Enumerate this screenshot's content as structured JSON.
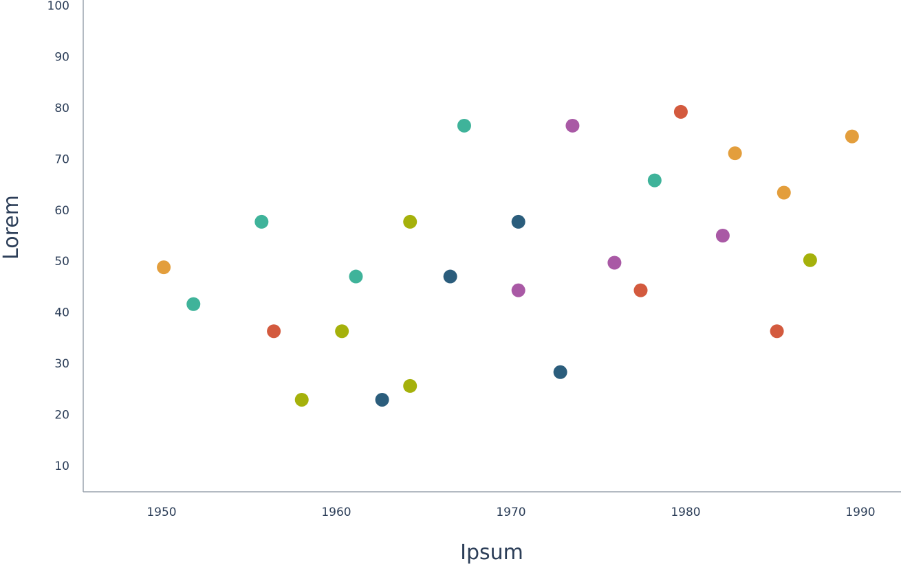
{
  "chart_data": {
    "type": "scatter",
    "xlabel": "Ipsum",
    "ylabel": "Lorem",
    "xlim": [
      1945.6,
      1991.6
    ],
    "ylim": [
      5,
      100
    ],
    "x_ticks": [
      1950,
      1960,
      1970,
      1980,
      1990
    ],
    "y_ticks": [
      10,
      20,
      30,
      40,
      50,
      60,
      70,
      80,
      90,
      100
    ],
    "grid": false,
    "legend": "none",
    "points": [
      {
        "x": 1950.2,
        "y": 48.8,
        "color": "#e39e3c"
      },
      {
        "x": 1951.9,
        "y": 41.6,
        "color": "#3fb39a"
      },
      {
        "x": 1955.8,
        "y": 57.7,
        "color": "#3fb39a"
      },
      {
        "x": 1956.5,
        "y": 36.3,
        "color": "#d35a3e"
      },
      {
        "x": 1958.1,
        "y": 22.9,
        "color": "#a5b10b"
      },
      {
        "x": 1960.4,
        "y": 36.3,
        "color": "#a5b10b"
      },
      {
        "x": 1961.2,
        "y": 47.0,
        "color": "#3fb39a"
      },
      {
        "x": 1962.7,
        "y": 22.9,
        "color": "#2b5d7c"
      },
      {
        "x": 1964.3,
        "y": 25.6,
        "color": "#a5b10b"
      },
      {
        "x": 1964.3,
        "y": 57.7,
        "color": "#a5b10b"
      },
      {
        "x": 1966.6,
        "y": 47.0,
        "color": "#2b5d7c"
      },
      {
        "x": 1967.4,
        "y": 76.5,
        "color": "#3fb39a"
      },
      {
        "x": 1970.5,
        "y": 44.3,
        "color": "#a959a5"
      },
      {
        "x": 1970.5,
        "y": 57.7,
        "color": "#2b5d7c"
      },
      {
        "x": 1972.9,
        "y": 28.3,
        "color": "#2b5d7c"
      },
      {
        "x": 1973.6,
        "y": 76.5,
        "color": "#a959a5"
      },
      {
        "x": 1976.0,
        "y": 49.7,
        "color": "#a959a5"
      },
      {
        "x": 1977.5,
        "y": 44.3,
        "color": "#d35a3e"
      },
      {
        "x": 1978.3,
        "y": 65.8,
        "color": "#3fb39a"
      },
      {
        "x": 1979.8,
        "y": 79.2,
        "color": "#d35a3e"
      },
      {
        "x": 1982.2,
        "y": 55.0,
        "color": "#a959a5"
      },
      {
        "x": 1982.9,
        "y": 71.1,
        "color": "#e39e3c"
      },
      {
        "x": 1985.3,
        "y": 36.3,
        "color": "#d35a3e"
      },
      {
        "x": 1985.7,
        "y": 63.4,
        "color": "#e39e3c"
      },
      {
        "x": 1987.2,
        "y": 50.2,
        "color": "#a5b10b"
      },
      {
        "x": 1989.6,
        "y": 74.4,
        "color": "#e39e3c"
      }
    ]
  }
}
